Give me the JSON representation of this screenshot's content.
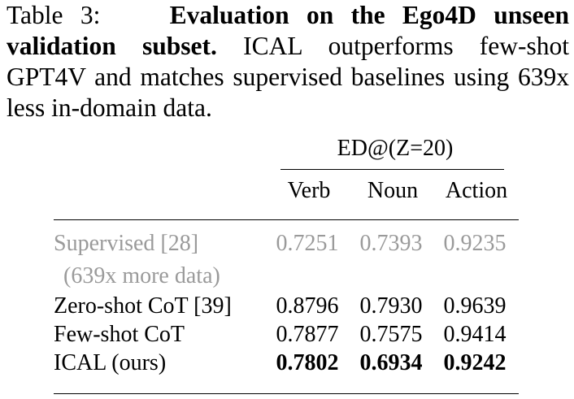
{
  "caption": {
    "label": "Table 3:",
    "title": "Evaluation on the Ego4D unseen validation subset.",
    "text": "ICAL outperforms few-shot GPT4V and matches supervised baselines using 639x less in-domain data."
  },
  "table": {
    "group_header": "ED@(Z=20)",
    "columns": [
      "Verb",
      "Noun",
      "Action"
    ],
    "rows": [
      {
        "label": "Supervised [28]",
        "note": "(639x more data)",
        "values": [
          "0.7251",
          "0.7393",
          "0.9235"
        ],
        "muted": true,
        "bold": false
      },
      {
        "label": "Zero-shot CoT [39]",
        "values": [
          "0.8796",
          "0.7930",
          "0.9639"
        ],
        "muted": false,
        "bold": false
      },
      {
        "label": "Few-shot CoT",
        "values": [
          "0.7877",
          "0.7575",
          "0.9414"
        ],
        "muted": false,
        "bold": false
      },
      {
        "label": "ICAL (ours)",
        "values": [
          "0.7802",
          "0.6934",
          "0.9242"
        ],
        "muted": false,
        "bold": true
      }
    ]
  }
}
